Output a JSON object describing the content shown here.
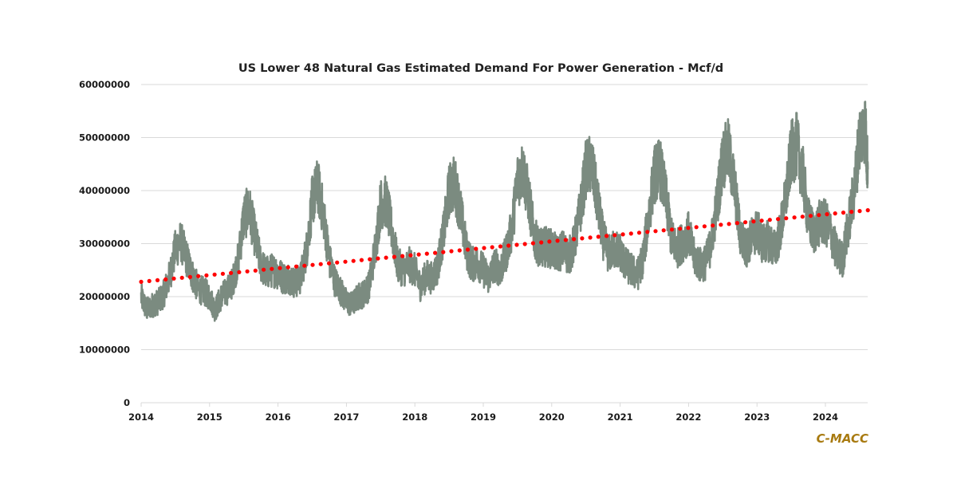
{
  "chart_data": {
    "type": "line",
    "title": "US Lower 48 Natural Gas Estimated Demand For Power Generation - Mcf/d",
    "xlabel": "",
    "ylabel": "",
    "ylim": [
      0,
      60000000
    ],
    "xlim": [
      2014,
      2024.65
    ],
    "y_ticks": [
      "0",
      "10000000",
      "20000000",
      "30000000",
      "40000000",
      "50000000",
      "60000000"
    ],
    "x_ticks": [
      "2014",
      "2015",
      "2016",
      "2017",
      "2018",
      "2019",
      "2020",
      "2021",
      "2022",
      "2023",
      "2024"
    ],
    "grid": true,
    "legend": "none",
    "colors": {
      "series": "#7b8b80",
      "trend": "#ff0000",
      "brand": "#a87a10"
    },
    "series": [
      {
        "name": "Estimated Demand For Power Generation (Mcf/d)",
        "style": "solid",
        "x": [
          2014.0,
          2014.08,
          2014.17,
          2014.25,
          2014.33,
          2014.42,
          2014.5,
          2014.58,
          2014.67,
          2014.75,
          2014.83,
          2014.92,
          2015.0,
          2015.08,
          2015.17,
          2015.25,
          2015.33,
          2015.42,
          2015.5,
          2015.58,
          2015.67,
          2015.75,
          2015.83,
          2015.92,
          2016.0,
          2016.08,
          2016.17,
          2016.25,
          2016.33,
          2016.42,
          2016.5,
          2016.58,
          2016.67,
          2016.75,
          2016.83,
          2016.92,
          2017.0,
          2017.08,
          2017.17,
          2017.25,
          2017.33,
          2017.42,
          2017.5,
          2017.58,
          2017.67,
          2017.75,
          2017.83,
          2017.92,
          2018.0,
          2018.08,
          2018.17,
          2018.25,
          2018.33,
          2018.42,
          2018.5,
          2018.58,
          2018.67,
          2018.75,
          2018.83,
          2018.92,
          2019.0,
          2019.08,
          2019.17,
          2019.25,
          2019.33,
          2019.42,
          2019.5,
          2019.58,
          2019.67,
          2019.75,
          2019.83,
          2019.92,
          2020.0,
          2020.08,
          2020.17,
          2020.25,
          2020.33,
          2020.42,
          2020.5,
          2020.58,
          2020.67,
          2020.75,
          2020.83,
          2020.92,
          2021.0,
          2021.08,
          2021.17,
          2021.25,
          2021.33,
          2021.42,
          2021.5,
          2021.58,
          2021.67,
          2021.75,
          2021.83,
          2021.92,
          2022.0,
          2022.08,
          2022.17,
          2022.25,
          2022.33,
          2022.42,
          2022.5,
          2022.58,
          2022.67,
          2022.75,
          2022.83,
          2022.92,
          2023.0,
          2023.08,
          2023.17,
          2023.25,
          2023.33,
          2023.42,
          2023.5,
          2023.58,
          2023.67,
          2023.75,
          2023.83,
          2023.92,
          2024.0,
          2024.08,
          2024.17,
          2024.25,
          2024.33,
          2024.42,
          2024.5,
          2024.58,
          2024.62
        ],
        "values": [
          20000000,
          17500000,
          18500000,
          19000000,
          20500000,
          24000000,
          29000000,
          30500000,
          27000000,
          24000000,
          21500000,
          21000000,
          20000000,
          17500000,
          20000000,
          21000000,
          22500000,
          27000000,
          35000000,
          36500000,
          31000000,
          26000000,
          24500000,
          25000000,
          24500000,
          23500000,
          23500000,
          22500000,
          23500000,
          29000000,
          38000000,
          41000000,
          35000000,
          27000000,
          23000000,
          21000000,
          19000000,
          18500000,
          20000000,
          20500000,
          22000000,
          29000000,
          37500000,
          38000000,
          32000000,
          26000000,
          25000000,
          26000000,
          25000000,
          22000000,
          24000000,
          23500000,
          25500000,
          32000000,
          40000000,
          41500000,
          36000000,
          29000000,
          26000000,
          26500000,
          25000000,
          23500000,
          26000000,
          25000000,
          28000000,
          33000000,
          42000000,
          44000000,
          38000000,
          31000000,
          29000000,
          29500000,
          29000000,
          28000000,
          29000000,
          27500000,
          30000000,
          36500000,
          44000000,
          45000000,
          38000000,
          31000000,
          28000000,
          29000000,
          28500000,
          26000000,
          25000000,
          24000000,
          27000000,
          35500000,
          43000000,
          44500000,
          38500000,
          31000000,
          29000000,
          30500000,
          32000000,
          27500000,
          26000000,
          26500000,
          30000000,
          38000000,
          46000000,
          47500000,
          41000000,
          32000000,
          29000000,
          31000000,
          32500000,
          30000000,
          30500000,
          29000000,
          31500000,
          38500000,
          47000000,
          48500000,
          43000000,
          34500000,
          32000000,
          34000000,
          34000000,
          32000000,
          28000000,
          27000000,
          33000000,
          40000000,
          50000000,
          52000000,
          44000000
        ]
      },
      {
        "name": "Linear trend",
        "style": "dotted",
        "x": [
          2014.0,
          2024.62
        ],
        "values": [
          22800000,
          36300000
        ]
      }
    ],
    "annotations": [
      {
        "text": "C-MACC",
        "position": "bottom-right"
      }
    ]
  }
}
